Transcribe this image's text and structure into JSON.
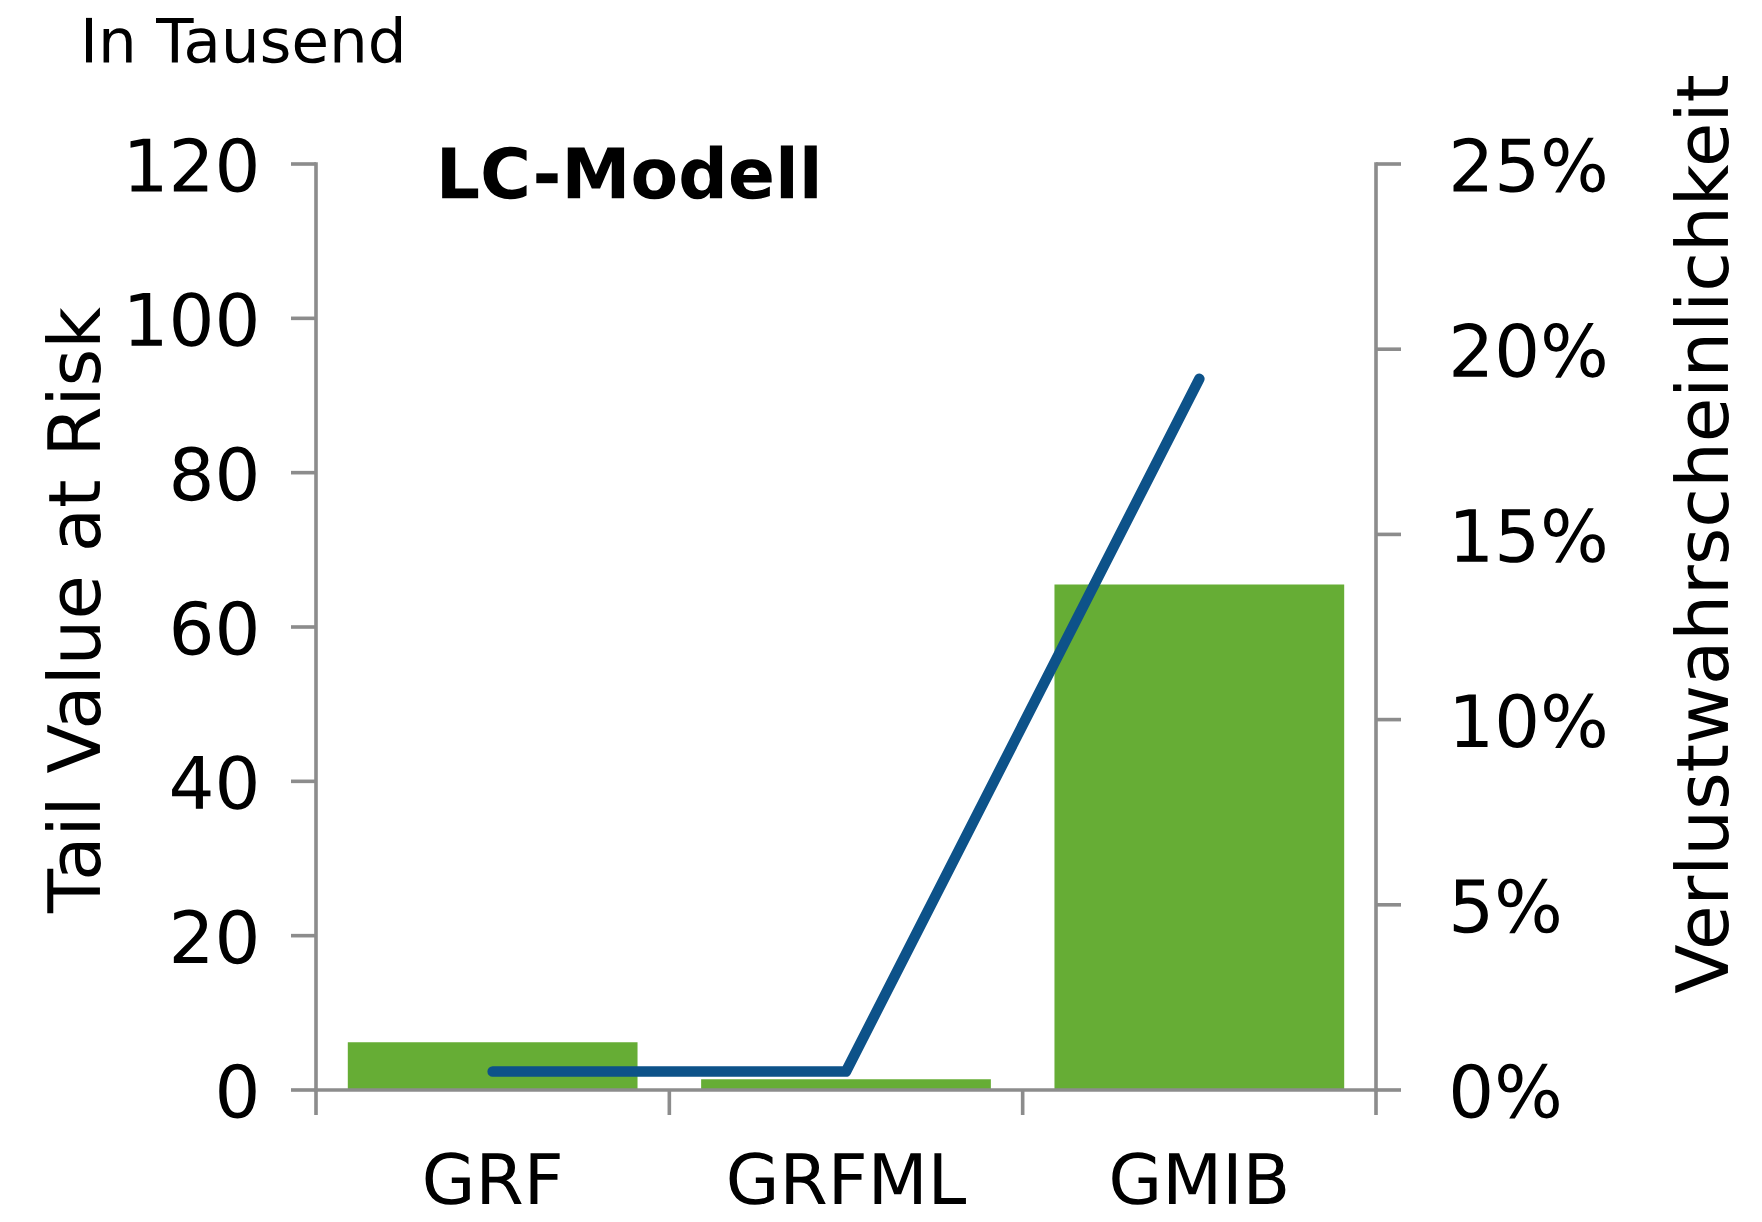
{
  "chart_data": {
    "type": "bar",
    "title": "LC-Modell",
    "ylabel": "Tail Value at Risk",
    "y2label": "Verlustwahrscheinlichkeit",
    "annotations": [
      "In Tausend"
    ],
    "categories": [
      "GRF",
      "GRFML",
      "GMIB"
    ],
    "series": [
      {
        "color": "#66ad35",
        "values": [
          6.2,
          1.4,
          65.5
        ]
      },
      {
        "type": "line",
        "axis": "y2",
        "color": "#0d5289",
        "values": [
          0.5,
          0.5,
          19.2
        ]
      }
    ],
    "ylim": [
      0,
      120
    ],
    "yticks": [
      0,
      20,
      40,
      60,
      80,
      100,
      120
    ],
    "y2lim": [
      0,
      25
    ],
    "y2ticks": [
      {
        "value": 0,
        "label": "0%"
      },
      {
        "value": 5,
        "label": "5%"
      },
      {
        "value": 10,
        "label": "10%"
      },
      {
        "value": 15,
        "label": "15%"
      },
      {
        "value": 20,
        "label": "20%"
      },
      {
        "value": 25,
        "label": "25%"
      }
    ],
    "grid": false,
    "line_style": "solid"
  }
}
